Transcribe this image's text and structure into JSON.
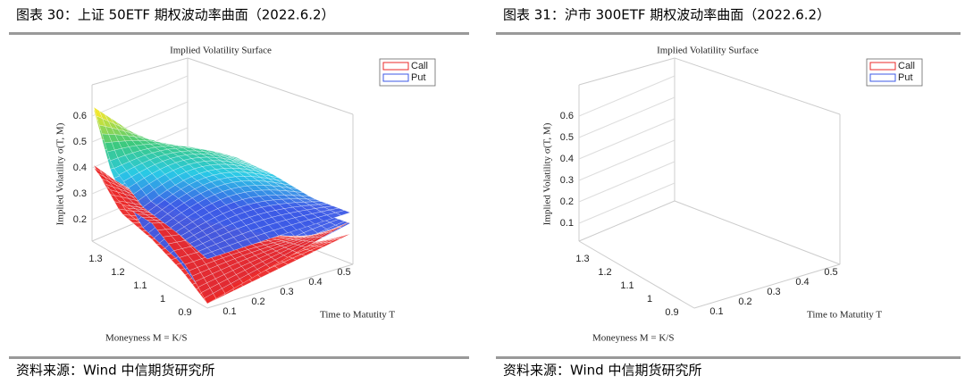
{
  "figures": [
    {
      "caption": "图表 30：上证 50ETF 期权波动率曲面（2022.6.2）",
      "title": "Implied Volatility Surface",
      "legend": [
        "Call",
        "Put"
      ],
      "zlabel": "Implied Volatility σ(T, M)",
      "xlabel": "Time to Matutity T",
      "ylabel": "Moneyness M = K/S",
      "zticks": [
        "0.6",
        "0.5",
        "0.4",
        "0.3",
        "0.2"
      ],
      "mticks": [
        "1.3",
        "1.2",
        "1.1",
        "1",
        "0.9"
      ],
      "tticks": [
        "0.1",
        "0.2",
        "0.3",
        "0.4",
        "0.5"
      ],
      "source": "资料来源：Wind 中信期货研究所"
    },
    {
      "caption": "图表 31：沪市 300ETF 期权波动率曲面（2022.6.2）",
      "title": "Implied Volatility Surface",
      "legend": [
        "Call",
        "Put"
      ],
      "zlabel": "Implied Volatility σ(T, M)",
      "xlabel": "Time to Matutity T",
      "ylabel": "Moneyness M = K/S",
      "zticks": [
        "0.6",
        "0.5",
        "0.4",
        "0.3",
        "0.2",
        "0.1"
      ],
      "mticks": [
        "1.3",
        "1.2",
        "1.1",
        "1",
        "0.9"
      ],
      "tticks": [
        "0.1",
        "0.2",
        "0.3",
        "0.4",
        "0.5"
      ],
      "source": "资料来源：Wind 中信期货研究所"
    }
  ]
}
